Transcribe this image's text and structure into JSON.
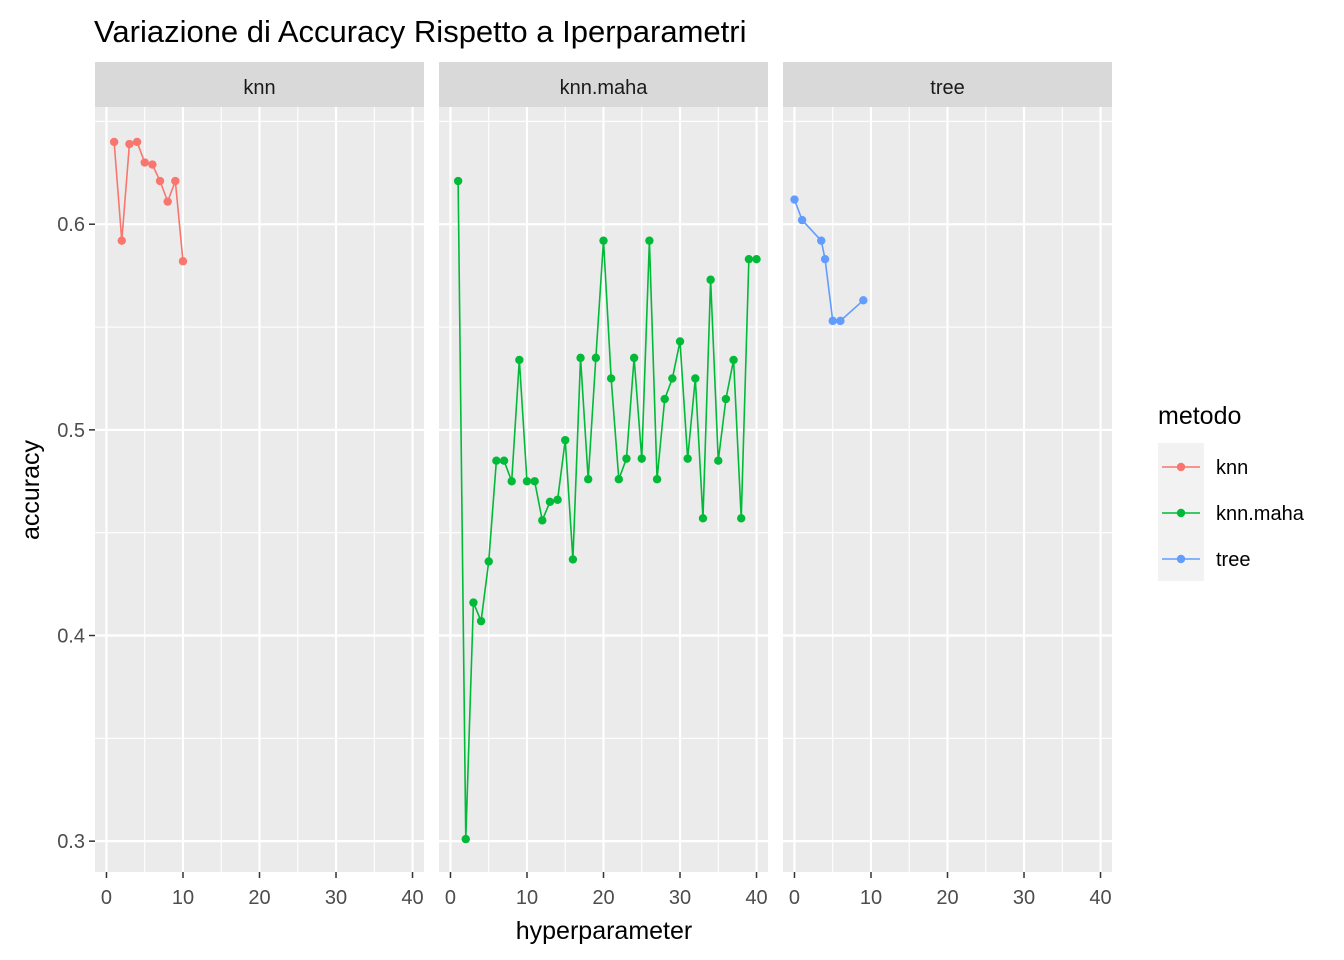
{
  "chart_data": {
    "type": "line",
    "title": "Variazione di Accuracy Rispetto a Iperparametri",
    "xlabel": "hyperparameter",
    "ylabel": "accuracy",
    "xlim": [
      -1.5,
      41.5
    ],
    "ylim": [
      0.285,
      0.657
    ],
    "x_ticks": [
      0,
      10,
      20,
      30,
      40
    ],
    "y_ticks": [
      0.3,
      0.4,
      0.5,
      0.6
    ],
    "grid": true,
    "legend": {
      "title": "metodo",
      "position": "right",
      "entries": [
        "knn",
        "knn.maha",
        "tree"
      ]
    },
    "panels": [
      "knn",
      "knn.maha",
      "tree"
    ],
    "series": [
      {
        "name": "knn",
        "panel": "knn",
        "color": "#F8766D",
        "points": [
          [
            1,
            0.64
          ],
          [
            2,
            0.592
          ],
          [
            3,
            0.639
          ],
          [
            4,
            0.64
          ],
          [
            5,
            0.63
          ],
          [
            6,
            0.629
          ],
          [
            7,
            0.621
          ],
          [
            8,
            0.611
          ],
          [
            9,
            0.621
          ],
          [
            10,
            0.582
          ]
        ]
      },
      {
        "name": "knn.maha",
        "panel": "knn.maha",
        "color": "#00BA38",
        "points": [
          [
            1,
            0.621
          ],
          [
            2,
            0.301
          ],
          [
            3,
            0.416
          ],
          [
            4,
            0.407
          ],
          [
            5,
            0.436
          ],
          [
            6,
            0.485
          ],
          [
            7,
            0.485
          ],
          [
            8,
            0.475
          ],
          [
            9,
            0.534
          ],
          [
            10,
            0.475
          ],
          [
            11,
            0.475
          ],
          [
            12,
            0.456
          ],
          [
            13,
            0.465
          ],
          [
            14,
            0.466
          ],
          [
            15,
            0.495
          ],
          [
            16,
            0.437
          ],
          [
            17,
            0.535
          ],
          [
            18,
            0.476
          ],
          [
            19,
            0.535
          ],
          [
            20,
            0.592
          ],
          [
            21,
            0.525
          ],
          [
            22,
            0.476
          ],
          [
            23,
            0.486
          ],
          [
            24,
            0.535
          ],
          [
            25,
            0.486
          ],
          [
            26,
            0.592
          ],
          [
            27,
            0.476
          ],
          [
            28,
            0.515
          ],
          [
            29,
            0.525
          ],
          [
            30,
            0.543
          ],
          [
            31,
            0.486
          ],
          [
            32,
            0.525
          ],
          [
            33,
            0.457
          ],
          [
            34,
            0.573
          ],
          [
            35,
            0.485
          ],
          [
            36,
            0.515
          ],
          [
            37,
            0.534
          ],
          [
            38,
            0.457
          ],
          [
            39,
            0.583
          ],
          [
            40,
            0.583
          ]
        ]
      },
      {
        "name": "tree",
        "panel": "tree",
        "color": "#619CFF",
        "points": [
          [
            0,
            0.612
          ],
          [
            1,
            0.602
          ],
          [
            3.5,
            0.592
          ],
          [
            4,
            0.583
          ],
          [
            5,
            0.553
          ],
          [
            6,
            0.553
          ],
          [
            9,
            0.563
          ]
        ]
      }
    ]
  }
}
